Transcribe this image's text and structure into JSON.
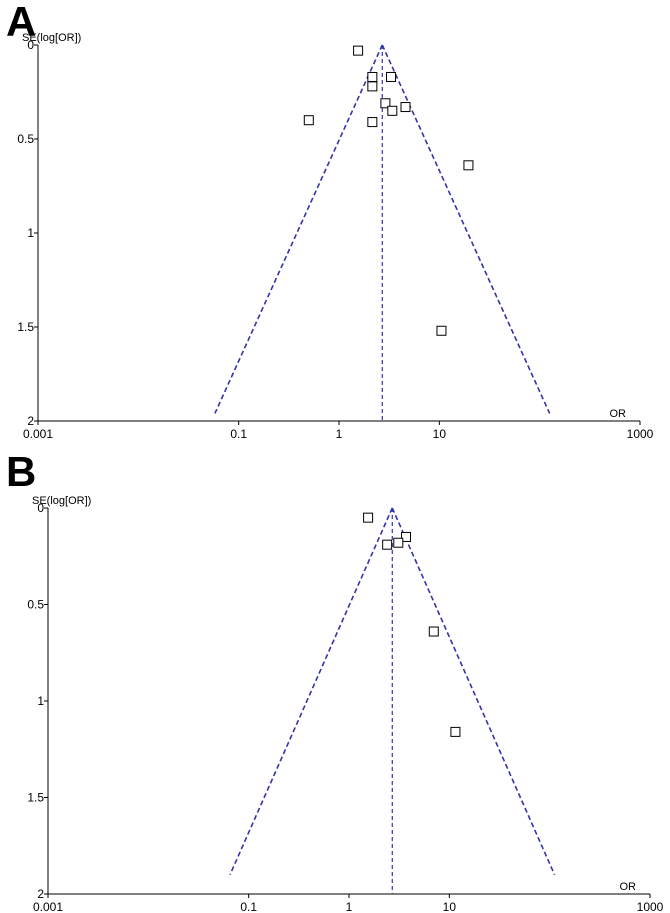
{
  "chart_data": [
    {
      "type": "scatter",
      "panel_label": "A",
      "ylabel": "SE(log[OR])",
      "xlabel": "OR",
      "xscale": "log",
      "xlim": [
        0.001,
        1000
      ],
      "ylim": [
        0,
        2
      ],
      "y_inverted": true,
      "xticks": [
        "0.001",
        "0.1",
        "1",
        "10",
        "1000"
      ],
      "xtick_values": [
        0.001,
        0.1,
        1,
        10,
        1000
      ],
      "yticks": [
        "0",
        "0.5",
        "1",
        "1.5",
        "2"
      ],
      "ytick_values": [
        0,
        0.5,
        1,
        1.5,
        2
      ],
      "pooled_or": 2.7,
      "funnel_color": "#3333aa",
      "points": [
        {
          "or": 1.55,
          "se": 0.03
        },
        {
          "or": 3.3,
          "se": 0.17
        },
        {
          "or": 2.15,
          "se": 0.17
        },
        {
          "or": 2.15,
          "se": 0.22
        },
        {
          "or": 2.9,
          "se": 0.31
        },
        {
          "or": 4.6,
          "se": 0.33
        },
        {
          "or": 3.4,
          "se": 0.35
        },
        {
          "or": 0.5,
          "se": 0.4
        },
        {
          "or": 2.15,
          "se": 0.41
        },
        {
          "or": 19.5,
          "se": 0.64
        },
        {
          "or": 10.5,
          "se": 1.52
        }
      ]
    },
    {
      "type": "scatter",
      "panel_label": "B",
      "ylabel": "SE(log[OR])",
      "xlabel": "OR",
      "xscale": "log",
      "xlim": [
        0.001,
        1000
      ],
      "ylim": [
        0,
        2
      ],
      "y_inverted": true,
      "xticks": [
        "0.001",
        "0.1",
        "1",
        "10",
        "1000"
      ],
      "xtick_values": [
        0.001,
        0.1,
        1,
        10,
        1000
      ],
      "yticks": [
        "0",
        "0.5",
        "1",
        "1.5",
        "2"
      ],
      "ytick_values": [
        0,
        0.5,
        1,
        1.5,
        2
      ],
      "pooled_or": 2.7,
      "funnel_color": "#3333aa",
      "points": [
        {
          "or": 1.55,
          "se": 0.05
        },
        {
          "or": 3.7,
          "se": 0.15
        },
        {
          "or": 3.1,
          "se": 0.18
        },
        {
          "or": 2.4,
          "se": 0.19
        },
        {
          "or": 7.0,
          "se": 0.64
        },
        {
          "or": 11.5,
          "se": 1.16
        }
      ]
    }
  ]
}
